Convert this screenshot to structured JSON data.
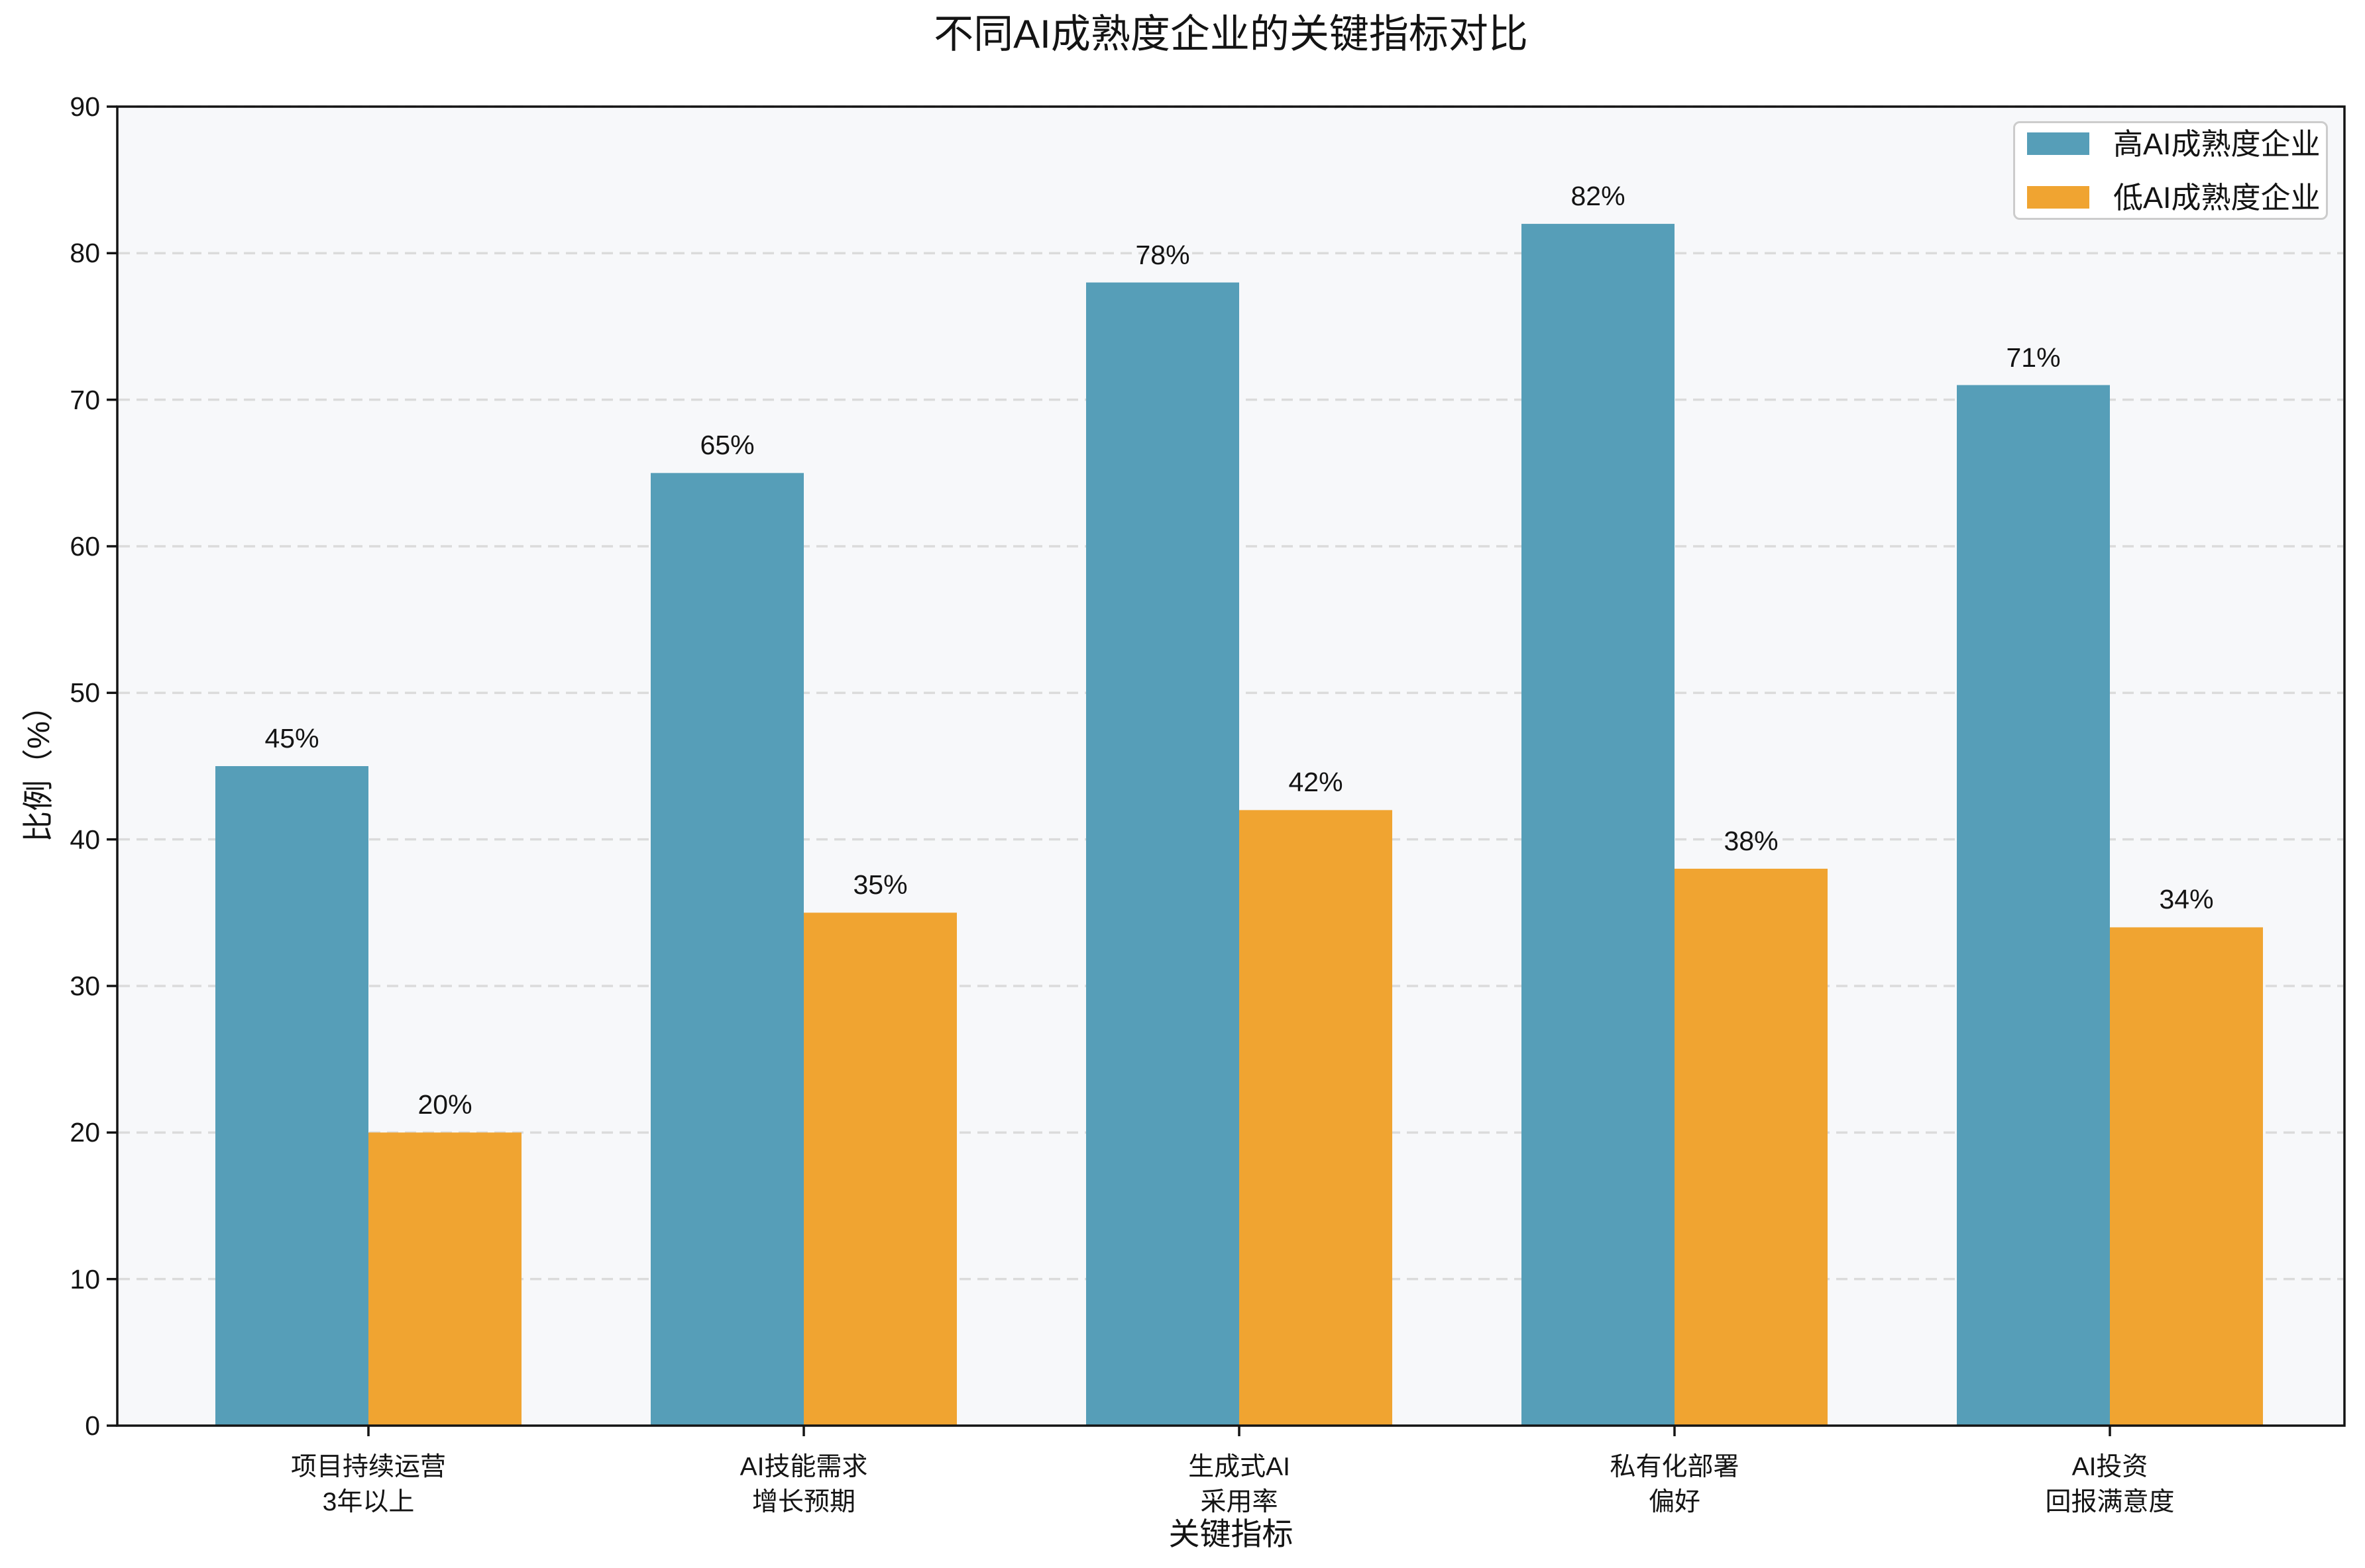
{
  "title": "不同AI成熟度企业的关键指标对比",
  "chart_data": {
    "type": "bar",
    "title": "不同AI成熟度企业的关键指标对比",
    "xlabel": "关键指标",
    "ylabel": "比例（%）",
    "ylim": [
      0,
      90
    ],
    "yticks": [
      0,
      10,
      20,
      30,
      40,
      50,
      60,
      70,
      80,
      90
    ],
    "grid": "horizontal dashed light-gray, drawn below bars",
    "legend_position": "upper right",
    "value_label_suffix": "%",
    "categories": [
      "项目持续运营\n3年以上",
      "AI技能需求\n增长预期",
      "生成式AI\n采用率",
      "私有化部署\n偏好",
      "AI投资\n回报满意度"
    ],
    "series": [
      {
        "name": "高AI成熟度企业",
        "color": "#569EB8",
        "values": [
          45,
          65,
          78,
          82,
          71
        ]
      },
      {
        "name": "低AI成熟度企业",
        "color": "#F0A431",
        "values": [
          20,
          35,
          42,
          38,
          34
        ]
      }
    ]
  },
  "colors": {
    "figure_background": "#FFFFFF",
    "axes_background": "#F7F8FA",
    "grid": "#DBDBDB",
    "spine": "#141414",
    "text": "#141414",
    "legend_border": "#CCCCCC",
    "legend_background": "#FFFFFF"
  }
}
